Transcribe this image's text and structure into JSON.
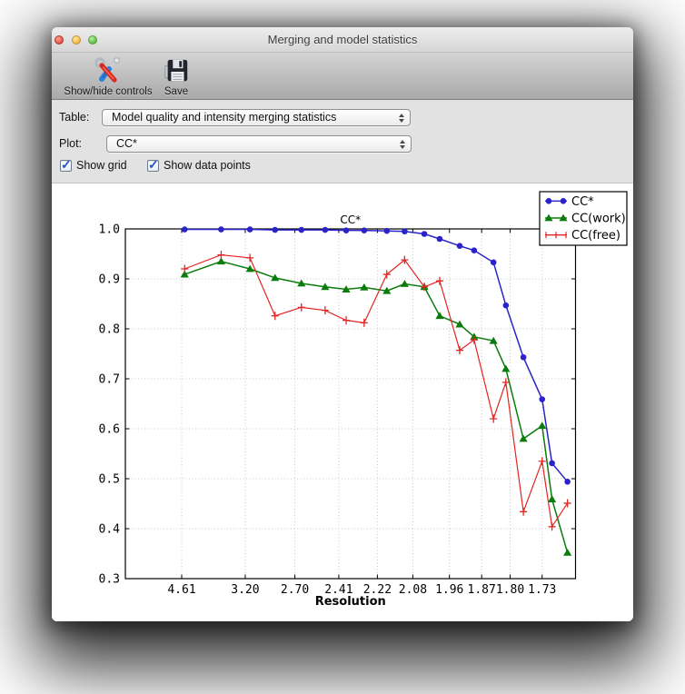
{
  "window": {
    "title": "Merging and model statistics"
  },
  "titlebar_buttons": {
    "close": "close",
    "minimize": "minimize",
    "zoom": "zoom"
  },
  "toolbar": {
    "buttons": [
      {
        "label": "Show/hide controls",
        "icon": "tools-icon"
      },
      {
        "label": "Save",
        "icon": "save-icon"
      }
    ]
  },
  "controls": {
    "table_label": "Table:",
    "table_value": "Model quality and intensity merging statistics",
    "plot_label": "Plot:",
    "plot_value": "CC*",
    "checkboxes": [
      {
        "label": "Show grid",
        "checked": true
      },
      {
        "label": "Show data points",
        "checked": true
      }
    ]
  },
  "chart_data": {
    "type": "line",
    "title": "CC*",
    "xlabel": "Resolution",
    "ylabel": "",
    "grid": true,
    "show_data_points": true,
    "legend_position": "upper right",
    "ylim": [
      0.3,
      1.0
    ],
    "y_ticks": [
      1.0,
      0.9,
      0.8,
      0.7,
      0.6,
      0.5,
      0.4,
      0.3
    ],
    "x_axis_note": "resolution in Angstrom, plotted on inverse-d-squared scale, high resolution at right",
    "xlim_d": [
      21.4,
      1.665
    ],
    "x_tick_labels": [
      "4.61",
      "3.20",
      "2.70",
      "2.41",
      "2.22",
      "2.08",
      "1.96",
      "1.87",
      "1.80",
      "1.73"
    ],
    "x_tick_d": [
      4.61,
      3.2,
      2.7,
      2.41,
      2.22,
      2.08,
      1.96,
      1.87,
      1.8,
      1.73
    ],
    "x_d": [
      4.5,
      3.57,
      3.14,
      2.87,
      2.65,
      2.49,
      2.37,
      2.28,
      2.18,
      2.11,
      2.04,
      1.99,
      1.93,
      1.89,
      1.84,
      1.81,
      1.77,
      1.73,
      1.71,
      1.68
    ],
    "series": [
      {
        "name": "CC*",
        "color": "#2a23c9",
        "marker": "circle",
        "values": [
          0.999,
          0.999,
          0.999,
          0.998,
          0.998,
          0.998,
          0.997,
          0.997,
          0.996,
          0.995,
          0.99,
          0.98,
          0.966,
          0.957,
          0.933,
          0.847,
          0.743,
          0.659,
          0.531,
          0.494
        ]
      },
      {
        "name": "CC(work)",
        "color": "#0b7c0b",
        "marker": "triangle",
        "values": [
          0.909,
          0.935,
          0.92,
          0.902,
          0.891,
          0.884,
          0.879,
          0.883,
          0.876,
          0.89,
          0.884,
          0.826,
          0.809,
          0.784,
          0.776,
          0.72,
          0.58,
          0.606,
          0.459,
          0.352
        ]
      },
      {
        "name": "CC(free)",
        "color": "#e62323",
        "marker": "plus",
        "values": [
          0.92,
          0.948,
          0.942,
          0.826,
          0.843,
          0.837,
          0.817,
          0.812,
          0.909,
          0.938,
          0.884,
          0.896,
          0.757,
          0.778,
          0.62,
          0.693,
          0.434,
          0.535,
          0.404,
          0.451
        ]
      }
    ]
  },
  "colors": {
    "chrome_top": "#ededed",
    "chrome_bottom": "#a9a9a9",
    "panel_bg": "#e2e2e2",
    "figure_bg": "#ffffff",
    "check_accent": "#1a53c9",
    "grid": "#c8c8c8"
  }
}
